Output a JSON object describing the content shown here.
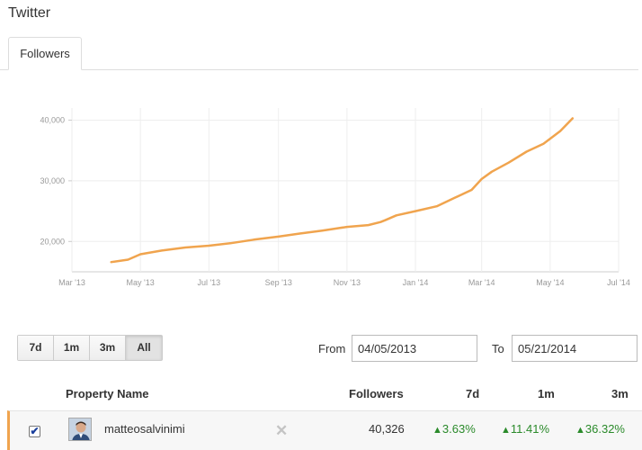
{
  "app": {
    "title": "Twitter"
  },
  "tabs": [
    {
      "label": "Followers"
    }
  ],
  "chart_data": {
    "type": "line",
    "ylim": [
      15000,
      42000
    ],
    "yticks": [
      20000,
      30000,
      40000
    ],
    "ytick_labels": [
      "20,000",
      "30,000",
      "40,000"
    ],
    "xlim": [
      "2013-03-01",
      "2014-07-01"
    ],
    "xticks": [
      "2013-03-01",
      "2013-05-01",
      "2013-07-01",
      "2013-09-01",
      "2013-11-01",
      "2014-01-01",
      "2014-03-01",
      "2014-05-01",
      "2014-07-01"
    ],
    "xtick_labels": [
      "Mar '13",
      "May '13",
      "Jul '13",
      "Sep '13",
      "Nov '13",
      "Jan '14",
      "Mar '14",
      "May '14",
      "Jul '14"
    ],
    "grid": true,
    "color": "#f0a44e",
    "series": [
      {
        "x": [
          "2013-04-05",
          "2013-04-20",
          "2013-05-01",
          "2013-05-20",
          "2013-06-10",
          "2013-07-01",
          "2013-07-20",
          "2013-08-10",
          "2013-09-01",
          "2013-09-20",
          "2013-10-10",
          "2013-11-01",
          "2013-11-20",
          "2013-12-01",
          "2013-12-05",
          "2013-12-15",
          "2014-01-01",
          "2014-01-20",
          "2014-02-05",
          "2014-02-20",
          "2014-03-01",
          "2014-03-10",
          "2014-03-25",
          "2014-04-10",
          "2014-04-25",
          "2014-05-10",
          "2014-05-21"
        ],
        "y": [
          16600,
          17000,
          17900,
          18500,
          19000,
          19300,
          19700,
          20300,
          20800,
          21300,
          21800,
          22400,
          22700,
          23200,
          23500,
          24300,
          25000,
          25800,
          27200,
          28500,
          30300,
          31500,
          33000,
          34800,
          36100,
          38200,
          40300
        ]
      }
    ]
  },
  "range_buttons": [
    {
      "label": "7d"
    },
    {
      "label": "1m"
    },
    {
      "label": "3m"
    },
    {
      "label": "All"
    }
  ],
  "date_range": {
    "from_label": "From",
    "from_value": "04/05/2013",
    "to_label": "To",
    "to_value": "05/21/2014"
  },
  "table": {
    "headers": {
      "property_name": "Property Name",
      "followers": "Followers",
      "d7": "7d",
      "m1": "1m",
      "m3": "3m"
    },
    "rows": [
      {
        "name": "matteosalvinimi",
        "followers": "40,326",
        "d7": "3.63%",
        "m1": "11.41%",
        "m3": "36.32%",
        "checked": "✔"
      }
    ]
  }
}
